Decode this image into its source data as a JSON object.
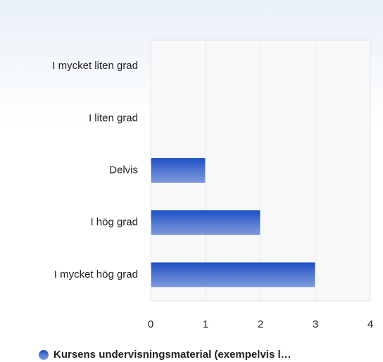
{
  "chart_data": {
    "type": "hbar",
    "categories": [
      "I mycket liten grad",
      "I liten grad",
      "Delvis",
      "I hög grad",
      "I mycket hög grad"
    ],
    "series": [
      {
        "name": "Kursens undervisningsmaterial (exempelvis l…",
        "color": "#1a4dc4",
        "values": [
          0,
          0,
          1,
          2,
          3
        ]
      }
    ],
    "xlim": [
      0,
      4
    ],
    "xticks": [
      0,
      1,
      2,
      3,
      4
    ],
    "grid": true
  }
}
